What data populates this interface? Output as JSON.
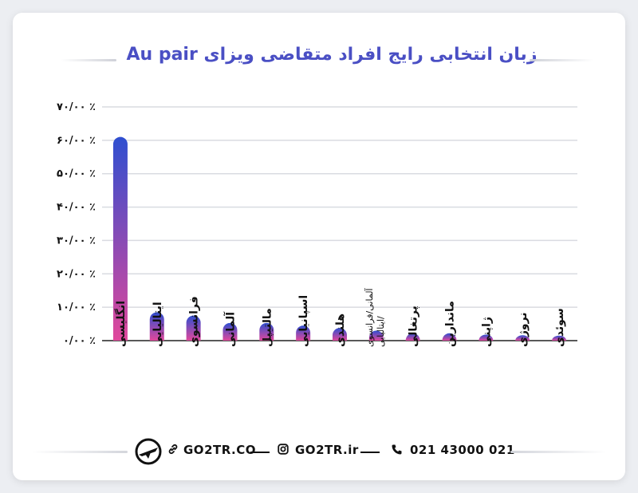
{
  "colors": {
    "title": "#4a4fc4",
    "bar_top": "#2f4fd0",
    "bar_bottom": "#e0479b",
    "grid": "#d9dbe1"
  },
  "chart_data": {
    "type": "bar",
    "title": "زبان انتخابی رایج افراد متقاضی ویزای Au pair",
    "xlabel": "",
    "ylabel": "",
    "ylim": [
      0,
      70
    ],
    "y_ticks": [
      "۰/۰۰ ٪",
      "۱۰/۰۰ ٪",
      "۲۰/۰۰ ٪",
      "۳۰/۰۰ ٪",
      "۴۰/۰۰ ٪",
      "۵۰/۰۰ ٪",
      "۶۰/۰۰ ٪",
      "۷۰/۰۰ ٪"
    ],
    "categories": [
      "انگلیسی",
      "ایتالیایی",
      "فرانسوی",
      "آلمانی",
      "مالتیپل",
      "اسپانیایی",
      "هلندی",
      "آلمانی/فرانسوی /ایتالیایی",
      "پرتغالی",
      "ماندارین",
      "ژاپنی",
      "نروژی",
      "سوئدی"
    ],
    "values": [
      61,
      8.5,
      7.5,
      5.3,
      5.3,
      4.5,
      3.8,
      3,
      2.2,
      2.2,
      1.8,
      1.6,
      1.5
    ],
    "grid": true,
    "legend": "none"
  },
  "footer": {
    "website": "GO2TR.CO",
    "instagram": "GO2TR.ir",
    "phone": "021 43000 021",
    "icons": [
      "link-icon",
      "instagram-icon",
      "phone-icon",
      "logo-icon"
    ]
  }
}
